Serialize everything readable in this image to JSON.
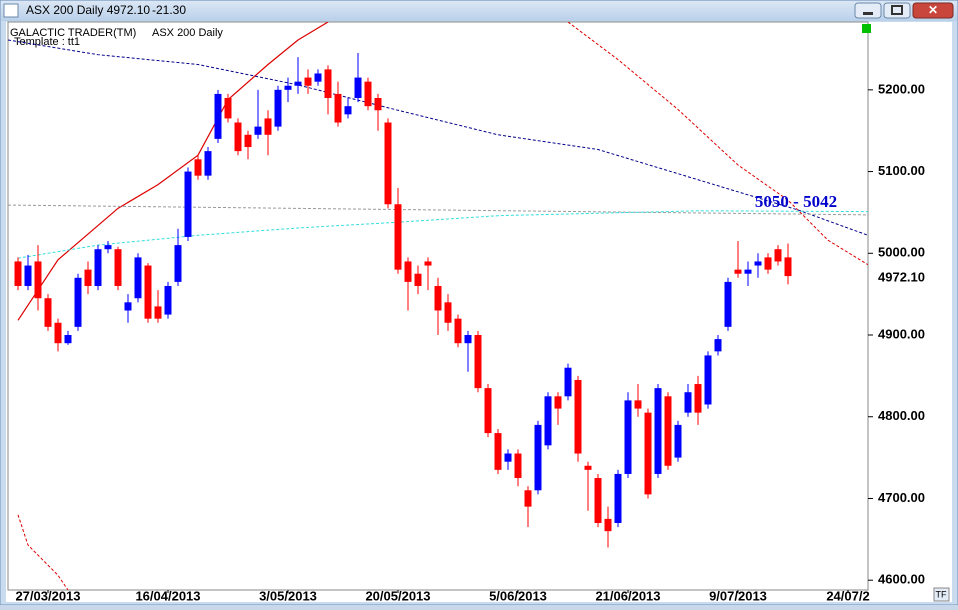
{
  "window": {
    "title": "ASX 200 Daily 4972.10",
    "change": "-21.30",
    "button": "TF"
  },
  "chart_data": {
    "type": "candlestick",
    "header": [
      "GALACTIC TRADER(TM)",
      "ASX 200 Daily"
    ],
    "template": "Template : tt1",
    "up_color": "#0000ff",
    "down_color": "#ff0000",
    "open": [
      4990,
      4960,
      4990,
      4945,
      4915,
      4890,
      4910,
      4980,
      4960,
      5005,
      5005,
      4930,
      4945,
      4985,
      4935,
      4925,
      4965,
      5020,
      5115,
      5095,
      5140,
      5190,
      5160,
      5145,
      5145,
      5165,
      5155,
      5200,
      5205,
      5215,
      5210,
      5225,
      5195,
      5170,
      5190,
      5210,
      5190,
      5160,
      5060,
      4990,
      4975,
      4990,
      4960,
      4940,
      4920,
      4890,
      4900,
      4835,
      4780,
      4745,
      4755,
      4710,
      4710,
      4765,
      4825,
      4825,
      4845,
      4740,
      4725,
      4675,
      4670,
      4730,
      4820,
      4805,
      4730,
      4825,
      4750,
      4805,
      4840,
      4815,
      4880,
      4910,
      4980,
      4975,
      4985,
      4995,
      5005,
      4995
    ],
    "high": [
      4995,
      4998,
      5010,
      4950,
      4920,
      4905,
      4975,
      4990,
      5010,
      5015,
      5008,
      4950,
      5000,
      4988,
      4955,
      4965,
      5030,
      5105,
      5120,
      5130,
      5200,
      5195,
      5165,
      5150,
      5200,
      5175,
      5205,
      5215,
      5240,
      5225,
      5225,
      5230,
      5210,
      5190,
      5245,
      5215,
      5195,
      5165,
      5080,
      4995,
      4985,
      4995,
      4970,
      4950,
      4925,
      4905,
      4905,
      4840,
      4785,
      4760,
      4760,
      4715,
      4795,
      4830,
      4830,
      4865,
      4850,
      4745,
      4730,
      4690,
      4735,
      4830,
      4840,
      4810,
      4840,
      4830,
      4795,
      4840,
      4850,
      4880,
      4900,
      4970,
      5015,
      4990,
      5000,
      5000,
      5010,
      5012
    ],
    "low": [
      4955,
      4955,
      4930,
      4905,
      4880,
      4888,
      4905,
      4950,
      4955,
      5000,
      4955,
      4915,
      4940,
      4915,
      4915,
      4920,
      4960,
      5015,
      5090,
      5090,
      5135,
      5160,
      5120,
      5115,
      5140,
      5120,
      5150,
      5185,
      5195,
      5195,
      5205,
      5170,
      5155,
      5165,
      5185,
      5175,
      5150,
      5055,
      4975,
      4930,
      4950,
      4955,
      4900,
      4905,
      4885,
      4855,
      4830,
      4775,
      4730,
      4735,
      4715,
      4665,
      4705,
      4760,
      4790,
      4820,
      4745,
      4685,
      4665,
      4640,
      4665,
      4725,
      4800,
      4700,
      4725,
      4735,
      4745,
      4800,
      4790,
      4810,
      4875,
      4905,
      4970,
      4960,
      4970,
      4975,
      4985,
      4962
    ],
    "close": [
      4960,
      4985,
      4945,
      4910,
      4890,
      4900,
      4970,
      4960,
      5005,
      5010,
      4960,
      4940,
      4995,
      4920,
      4920,
      4960,
      5010,
      5100,
      5095,
      5125,
      5195,
      5165,
      5125,
      5130,
      5155,
      5145,
      5200,
      5205,
      5210,
      5205,
      5220,
      5190,
      5160,
      5180,
      5215,
      5180,
      5175,
      5060,
      4980,
      4965,
      4960,
      4985,
      4930,
      4915,
      4890,
      4900,
      4835,
      4780,
      4735,
      4755,
      4725,
      4690,
      4790,
      4825,
      4810,
      4860,
      4755,
      4735,
      4670,
      4660,
      4730,
      4820,
      4810,
      4705,
      4835,
      4740,
      4790,
      4830,
      4805,
      4875,
      4895,
      4965,
      4975,
      4980,
      4990,
      4980,
      4990,
      4972.1
    ],
    "xlim": [
      -1,
      85
    ],
    "xticks": [
      {
        "value": 3,
        "label": "27/03/2013"
      },
      {
        "value": 15,
        "label": "16/04/2013"
      },
      {
        "value": 27,
        "label": "3/05/2013"
      },
      {
        "value": 38,
        "label": "20/05/2013"
      },
      {
        "value": 50,
        "label": "5/06/2013"
      },
      {
        "value": 61,
        "label": "21/06/2013"
      },
      {
        "value": 72,
        "label": "9/07/2013"
      },
      {
        "value": 83,
        "label": "24/07/2"
      }
    ],
    "ylim": [
      4588,
      5283
    ],
    "yticks": [
      {
        "value": 4600,
        "label": "4600.00"
      },
      {
        "value": 4700,
        "label": "4700.00"
      },
      {
        "value": 4800,
        "label": "4800.00"
      },
      {
        "value": 4900,
        "label": "4900.00"
      },
      {
        "value": 5000,
        "label": "5000.00"
      },
      {
        "value": 5100,
        "label": "5100.00"
      },
      {
        "value": 5200,
        "label": "5200.00"
      }
    ],
    "last_price": {
      "value": 4972.1,
      "label": "4972.10"
    },
    "lines": [
      {
        "color": "#dd0000",
        "dash": false,
        "x": [
          0,
          4,
          10,
          14,
          18,
          21,
          25,
          28,
          31
        ],
        "values": [
          4918,
          4992,
          5055,
          5084,
          5120,
          5188,
          5231,
          5261,
          5283
        ]
      },
      {
        "color": "#dd0000",
        "dash": true,
        "x": [
          55,
          60,
          66,
          72,
          77,
          81,
          85
        ],
        "values": [
          5283,
          5237,
          5176,
          5108,
          5065,
          5016,
          4986
        ]
      },
      {
        "color": "#dd0000",
        "dash": true,
        "x": [
          0,
          1,
          4,
          5
        ],
        "values": [
          4680,
          4643,
          4606,
          4588
        ]
      },
      {
        "color": "#00008b",
        "dash": true,
        "x": [
          -1,
          8,
          18,
          28,
          38,
          48,
          58,
          68,
          78,
          85
        ],
        "values": [
          5261,
          5243,
          5231,
          5206,
          5175,
          5145,
          5127,
          5090,
          5053,
          5022
        ]
      },
      {
        "color": "#999999",
        "dash": true,
        "x": [
          -1,
          85
        ],
        "values": [
          5059,
          5047
        ]
      },
      {
        "color": "#33dddd",
        "dash": true,
        "x": [
          0,
          8,
          18,
          28,
          38,
          48,
          58,
          68,
          85
        ],
        "values": [
          4994,
          5010,
          5022,
          5031,
          5038,
          5046,
          5049,
          5052,
          5051
        ]
      }
    ],
    "annotation": "5050 - 5042"
  }
}
